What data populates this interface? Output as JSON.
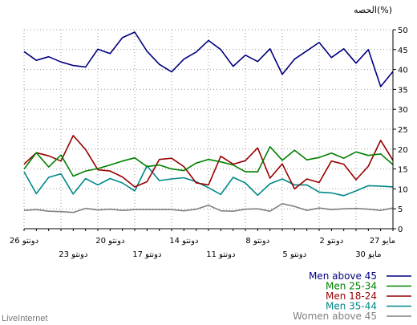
{
  "chart_data": {
    "type": "line",
    "unit_label": "الحصه(%)",
    "footer": "LiveInternet",
    "ylim": [
      0,
      50
    ],
    "yticks": [
      0,
      5,
      10,
      15,
      20,
      25,
      30,
      35,
      40,
      45,
      50
    ],
    "grid": true,
    "legend_position": "bottom-right",
    "x_count": 31,
    "xticks_row1": [
      {
        "index": 0,
        "label": "26 دونتو"
      },
      {
        "index": 7,
        "label": "20 دونتو"
      },
      {
        "index": 13,
        "label": "14 دونتو"
      },
      {
        "index": 19,
        "label": "8 دونتو"
      },
      {
        "index": 25,
        "label": "2 دونتو"
      },
      {
        "index": 30,
        "label": "27 مايو"
      }
    ],
    "xticks_row2": [
      {
        "index": 4,
        "label": "23 دونتو"
      },
      {
        "index": 10,
        "label": "17 دونتو"
      },
      {
        "index": 16,
        "label": "11 دونتو"
      },
      {
        "index": 22,
        "label": "5 دونتو"
      },
      {
        "index": 28,
        "label": "30 مايو"
      }
    ],
    "series": [
      {
        "name": "Men above 45",
        "color": "#000080",
        "values": [
          44.5,
          42.3,
          43.2,
          41.9,
          41.0,
          40.6,
          45.1,
          44.0,
          48.0,
          49.4,
          44.6,
          41.3,
          39.4,
          42.6,
          44.4,
          47.3,
          45.0,
          40.8,
          43.6,
          42.0,
          45.2,
          38.8,
          42.6,
          44.7,
          46.8,
          43.0,
          45.2,
          41.6,
          45.0,
          35.7,
          39.5
        ]
      },
      {
        "name": "Men 25-34",
        "color": "#008000",
        "values": [
          15.0,
          19.1,
          15.5,
          18.5,
          13.2,
          14.5,
          15.1,
          16.0,
          17.0,
          17.8,
          15.6,
          16.0,
          15.0,
          14.6,
          16.5,
          17.4,
          16.8,
          16.0,
          14.3,
          14.3,
          20.6,
          17.2,
          19.7,
          17.3,
          17.9,
          19.0,
          17.7,
          19.3,
          18.4,
          18.8,
          16.1
        ]
      },
      {
        "name": "Men 18-24",
        "color": "#990000",
        "values": [
          16.2,
          19.1,
          18.3,
          17.0,
          23.4,
          19.9,
          14.8,
          14.5,
          13.0,
          10.5,
          11.8,
          17.4,
          17.7,
          15.6,
          11.5,
          11.0,
          18.2,
          16.2,
          17.1,
          20.3,
          12.7,
          16.3,
          10.0,
          12.5,
          11.6,
          17.0,
          16.2,
          12.3,
          15.7,
          22.2,
          17.2
        ]
      },
      {
        "name": "Men 35-44",
        "color": "#008888",
        "values": [
          14.3,
          8.8,
          12.9,
          13.8,
          8.7,
          12.6,
          11.0,
          12.6,
          11.5,
          9.5,
          15.8,
          12.1,
          12.5,
          12.8,
          11.8,
          10.3,
          8.6,
          12.9,
          11.5,
          8.4,
          11.3,
          12.5,
          11.0,
          11.0,
          9.2,
          9.0,
          8.3,
          9.5,
          10.8,
          10.7,
          10.5
        ]
      },
      {
        "name": "Women above 45",
        "color": "#808080",
        "values": [
          4.6,
          4.8,
          4.4,
          4.3,
          4.1,
          5.1,
          4.7,
          4.9,
          4.6,
          4.8,
          4.8,
          4.8,
          4.8,
          4.5,
          4.9,
          5.9,
          4.5,
          4.4,
          4.9,
          5.0,
          4.4,
          6.3,
          5.6,
          4.6,
          5.2,
          4.8,
          5.0,
          5.1,
          4.9,
          4.6,
          5.2
        ]
      }
    ],
    "legend_order": [
      0,
      1,
      2,
      3,
      4
    ]
  }
}
